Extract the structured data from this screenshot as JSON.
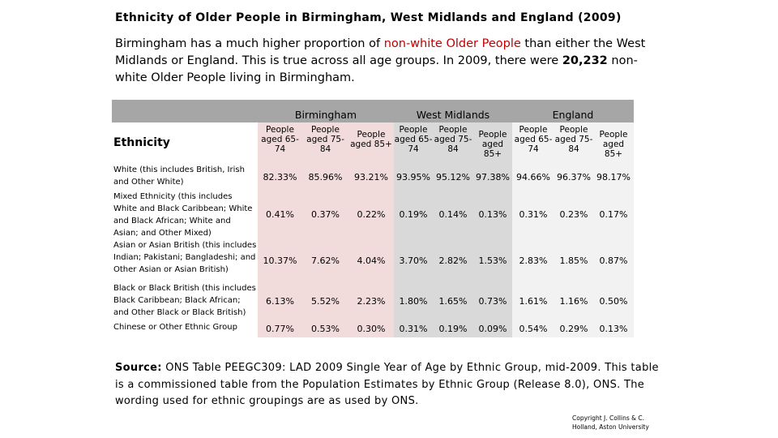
{
  "title": "Ethnicity of Older People in Birmingham, West Midlands and England (2009)",
  "intro": {
    "part1": "Birmingham has a much higher proportion of ",
    "highlight": "non-white Older People",
    "part2": " than either the West Midlands or England. This is true across all age groups. In 2009, there were ",
    "number": "20,232",
    "part3": " non-white Older People living in Birmingham."
  },
  "table": {
    "row_header": "Ethnicity",
    "groups": [
      "Birmingham",
      "West Midlands",
      "England"
    ],
    "columns": [
      "People aged 65-74",
      "People aged 75-84",
      "People aged 85+",
      "People aged 65-74",
      "People aged 75-84",
      "People aged 85+",
      "People aged 65-74",
      "People aged 75-84",
      "People aged 85+"
    ],
    "rows": [
      {
        "label": "White (this includes British, Irish and Other White)",
        "values": [
          "82.33%",
          "85.96%",
          "93.21%",
          "93.95%",
          "95.12%",
          "97.38%",
          "94.66%",
          "96.37%",
          "98.17%"
        ]
      },
      {
        "label": "Mixed Ethnicity (this includes White and Black Caribbean; White and Black African; White and Asian; and Other Mixed)",
        "values": [
          "0.41%",
          "0.37%",
          "0.22%",
          "0.19%",
          "0.14%",
          "0.13%",
          "0.31%",
          "0.23%",
          "0.17%"
        ]
      },
      {
        "label": "Asian or Asian British (this includes Indian; Pakistani; Bangladeshi; and Other Asian or Asian British)",
        "values": [
          "10.37%",
          "7.62%",
          "4.04%",
          "3.70%",
          "2.82%",
          "1.53%",
          "2.83%",
          "1.85%",
          "0.87%"
        ]
      },
      {
        "label": "Black or Black British (this includes Black Caribbean; Black African; and Other Black or Black British)",
        "values": [
          "6.13%",
          "5.52%",
          "2.23%",
          "1.80%",
          "1.65%",
          "0.73%",
          "1.61%",
          "1.16%",
          "0.50%"
        ]
      },
      {
        "label": "Chinese or Other Ethnic Group",
        "values": [
          "0.77%",
          "0.53%",
          "0.30%",
          "0.31%",
          "0.19%",
          "0.09%",
          "0.54%",
          "0.29%",
          "0.13%"
        ]
      }
    ]
  },
  "source": {
    "label": "Source:",
    "text": " ONS Table PEEGC309: LAD 2009 Single Year of Age by Ethnic Group, mid-2009. This table is a commissioned table from the Population Estimates by Ethnic Group (Release 8.0), ONS. The wording used for ethnic groupings are as used by ONS."
  },
  "copyright": {
    "line1": "Copyright J. Collins & C.",
    "line2": "Holland, Aston University"
  },
  "colors": {
    "accent_red": "#c00000",
    "group_band": "#a6a6a6",
    "birmingham_bg": "#f2dcdb",
    "west_midlands_bg": "#d9d9d9",
    "england_bg": "#f2f2f2"
  }
}
